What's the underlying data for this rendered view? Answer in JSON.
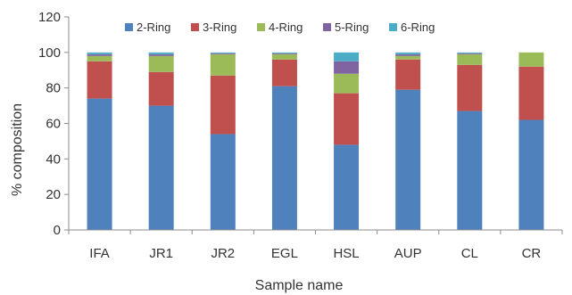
{
  "chart_data": {
    "type": "bar",
    "stacked": true,
    "categories": [
      "IFA",
      "JR1",
      "JR2",
      "EGL",
      "HSL",
      "AUP",
      "CL",
      "CR"
    ],
    "series": [
      {
        "name": "2-Ring",
        "color": "#4F81BD",
        "values": [
          74,
          70,
          54,
          81,
          48,
          79,
          67,
          62
        ]
      },
      {
        "name": "3-Ring",
        "color": "#C0504D",
        "values": [
          21,
          19,
          33,
          15,
          29,
          17,
          26,
          30
        ]
      },
      {
        "name": "4-Ring",
        "color": "#9BBB59",
        "values": [
          3,
          9,
          12,
          3,
          11,
          2,
          6,
          8
        ]
      },
      {
        "name": "5-Ring",
        "color": "#8064A2",
        "values": [
          1,
          1,
          0.5,
          0.5,
          7,
          1,
          0.5,
          0
        ]
      },
      {
        "name": "6-Ring",
        "color": "#4BACC6",
        "values": [
          1,
          1,
          0.5,
          0.5,
          5,
          1,
          0.5,
          0
        ]
      }
    ],
    "xlabel": "Sample name",
    "ylabel": "% composition",
    "ylim": [
      0,
      120
    ],
    "yticks": [
      0,
      20,
      40,
      60,
      80,
      100,
      120
    ],
    "grid": false,
    "legend_position": "top"
  }
}
